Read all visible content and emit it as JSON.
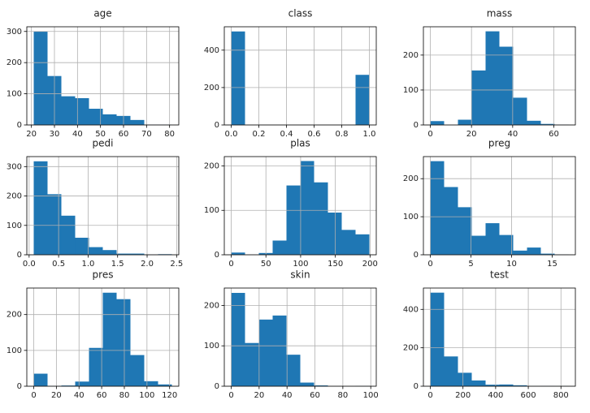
{
  "chart_data": [
    {
      "type": "histogram",
      "title": "age",
      "bins": [
        21,
        27,
        33,
        39,
        45,
        51,
        57,
        63,
        69,
        75,
        81
      ],
      "values": [
        300,
        157,
        92,
        86,
        52,
        34,
        29,
        16,
        1,
        1
      ],
      "xlim": [
        18,
        84
      ],
      "ylim": [
        0,
        315
      ],
      "xticks": [
        20,
        30,
        40,
        50,
        60,
        70,
        80
      ],
      "yticks": [
        0,
        100,
        200,
        300
      ],
      "grid": true,
      "color": "#1f77b4"
    },
    {
      "type": "histogram",
      "title": "class",
      "bins": [
        0,
        0.1,
        0.2,
        0.3,
        0.4,
        0.5,
        0.6,
        0.7,
        0.8,
        0.9,
        1
      ],
      "values": [
        500,
        0,
        0,
        0,
        0,
        0,
        0,
        0,
        0,
        268
      ],
      "xlim": [
        -0.05,
        1.05
      ],
      "ylim": [
        0,
        525
      ],
      "xticks": [
        {
          "value": 0,
          "label": "0.0"
        },
        {
          "value": 0.2,
          "label": "0.2"
        },
        {
          "value": 0.4,
          "label": "0.4"
        },
        {
          "value": 0.6,
          "label": "0.6"
        },
        {
          "value": 0.8,
          "label": "0.8"
        },
        {
          "value": 1,
          "label": "1.0"
        }
      ],
      "yticks": [
        0,
        200,
        400
      ],
      "grid": true,
      "color": "#1f77b4"
    },
    {
      "type": "histogram",
      "title": "mass",
      "bins": [
        0,
        6.71,
        13.42,
        20.13,
        26.84,
        33.55,
        40.26,
        46.97,
        53.68,
        60.39,
        67.1
      ],
      "values": [
        11,
        0,
        15,
        156,
        268,
        224,
        78,
        12,
        3,
        1
      ],
      "xlim": [
        -3.355,
        70.455
      ],
      "ylim": [
        0,
        281
      ],
      "xticks": [
        0,
        20,
        40,
        60
      ],
      "yticks": [
        0,
        100,
        200
      ],
      "grid": true,
      "color": "#1f77b4"
    },
    {
      "type": "histogram",
      "title": "pedi",
      "bins": [
        0.078,
        0.3122,
        0.5464,
        0.7806,
        1.0148,
        1.249,
        1.4832,
        1.7174,
        1.9516,
        2.1858,
        2.42
      ],
      "values": [
        318,
        206,
        133,
        58,
        26,
        16,
        4,
        4,
        1,
        2
      ],
      "xlim": [
        -0.039,
        2.537
      ],
      "ylim": [
        0,
        334
      ],
      "xticks": [
        {
          "value": 0,
          "label": "0.0"
        },
        {
          "value": 0.5,
          "label": "0.5"
        },
        {
          "value": 1,
          "label": "1.0"
        },
        {
          "value": 1.5,
          "label": "1.5"
        },
        {
          "value": 2,
          "label": "2.0"
        },
        {
          "value": 2.5,
          "label": "2.5"
        }
      ],
      "yticks": [
        0,
        100,
        200,
        300
      ],
      "grid": true,
      "color": "#1f77b4"
    },
    {
      "type": "histogram",
      "title": "plas",
      "bins": [
        0,
        19.9,
        39.8,
        59.7,
        79.6,
        99.5,
        119.4,
        139.3,
        159.2,
        179.1,
        199
      ],
      "values": [
        5,
        0,
        4,
        32,
        156,
        211,
        163,
        95,
        56,
        46
      ],
      "xlim": [
        -9.95,
        208.95
      ],
      "ylim": [
        0,
        221
      ],
      "xticks": [
        0,
        50,
        100,
        150,
        200
      ],
      "yticks": [
        0,
        100,
        200
      ],
      "grid": true,
      "color": "#1f77b4"
    },
    {
      "type": "histogram",
      "title": "preg",
      "bins": [
        0,
        1.7,
        3.4,
        5.1,
        6.8,
        8.5,
        10.2,
        11.9,
        13.6,
        15.3,
        17
      ],
      "values": [
        246,
        178,
        125,
        50,
        83,
        52,
        11,
        19,
        3,
        1
      ],
      "xlim": [
        -0.85,
        17.85
      ],
      "ylim": [
        0,
        258
      ],
      "xticks": [
        0,
        5,
        10,
        15
      ],
      "yticks": [
        0,
        100,
        200
      ],
      "grid": true,
      "color": "#1f77b4"
    },
    {
      "type": "histogram",
      "title": "pres",
      "bins": [
        0,
        12.2,
        24.4,
        36.6,
        48.8,
        61,
        73.2,
        85.4,
        97.6,
        109.8,
        122
      ],
      "values": [
        35,
        1,
        2,
        13,
        107,
        261,
        243,
        87,
        14,
        5
      ],
      "xlim": [
        -6.1,
        128.1
      ],
      "ylim": [
        0,
        274
      ],
      "xticks": [
        0,
        20,
        40,
        60,
        80,
        100,
        120
      ],
      "yticks": [
        0,
        100,
        200
      ],
      "grid": true,
      "color": "#1f77b4"
    },
    {
      "type": "histogram",
      "title": "skin",
      "bins": [
        0,
        9.9,
        19.8,
        29.7,
        39.6,
        49.5,
        59.4,
        69.3,
        79.2,
        89.1,
        99
      ],
      "values": [
        231,
        107,
        165,
        175,
        78,
        9,
        2,
        0,
        0,
        1
      ],
      "xlim": [
        -4.95,
        103.95
      ],
      "ylim": [
        0,
        243
      ],
      "xticks": [
        0,
        20,
        40,
        60,
        80,
        100
      ],
      "yticks": [
        0,
        100,
        200
      ],
      "grid": true,
      "color": "#1f77b4"
    },
    {
      "type": "histogram",
      "title": "test",
      "bins": [
        0,
        84.6,
        169.2,
        253.8,
        338.4,
        423,
        507.6,
        592.2,
        676.8,
        761.4,
        846
      ],
      "values": [
        487,
        155,
        70,
        30,
        8,
        9,
        5,
        1,
        2,
        1
      ],
      "xlim": [
        -42.3,
        888.3
      ],
      "ylim": [
        0,
        511
      ],
      "xticks": [
        0,
        200,
        400,
        600,
        800
      ],
      "yticks": [
        0,
        200,
        400
      ],
      "grid": true,
      "color": "#1f77b4"
    }
  ]
}
